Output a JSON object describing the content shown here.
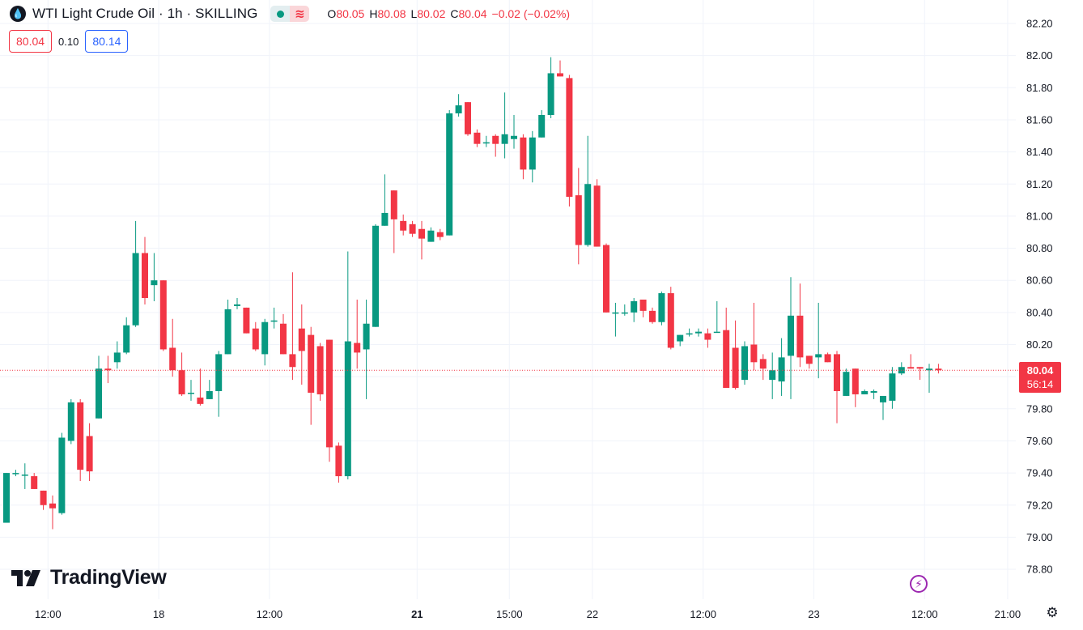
{
  "header": {
    "title": "WTI Light Crude Oil · 1h · SKILLING",
    "ohlc": {
      "o_label": "O",
      "o": "80.05",
      "h_label": "H",
      "h": "80.08",
      "l_label": "L",
      "l": "80.02",
      "c_label": "C",
      "c": "80.04",
      "change": "−0.02 (−0.02%)"
    }
  },
  "quote": {
    "sell": "80.04",
    "spread": "0.10",
    "buy": "80.14"
  },
  "last_price": {
    "price": "80.04",
    "countdown": "56:14"
  },
  "logo": {
    "text": "TradingView"
  },
  "icons": {
    "symbol": "oil-drop-icon",
    "market_status": "dot-icon",
    "wave": "wave-icon",
    "flash": "lightning-icon",
    "settings": "gear-icon"
  },
  "colors": {
    "up": "#089981",
    "down": "#f23645",
    "grid": "#f0f3fa",
    "text": "#131722",
    "buy": "#2962ff"
  },
  "chart_data": {
    "type": "candlestick",
    "symbol": "WTI Light Crude Oil",
    "interval": "1h",
    "ylim": [
      78.7,
      82.3
    ],
    "y_ticks": [
      "82.20",
      "82.00",
      "81.80",
      "81.60",
      "81.40",
      "81.20",
      "81.00",
      "80.80",
      "80.60",
      "80.40",
      "80.20",
      "80.00",
      "79.80",
      "79.60",
      "79.40",
      "79.20",
      "79.00",
      "78.80"
    ],
    "x_ticks": [
      {
        "label": "12:00",
        "index": 4.5,
        "bold": false
      },
      {
        "label": "18",
        "index": 16.5,
        "bold": false
      },
      {
        "label": "12:00",
        "index": 28.5,
        "bold": false
      },
      {
        "label": "21",
        "index": 44.5,
        "bold": true
      },
      {
        "label": "15:00",
        "index": 54.5,
        "bold": false
      },
      {
        "label": "22",
        "index": 63.5,
        "bold": false
      },
      {
        "label": "12:00",
        "index": 75.5,
        "bold": false
      },
      {
        "label": "23",
        "index": 87.5,
        "bold": false
      },
      {
        "label": "12:00",
        "index": 99.5,
        "bold": false
      },
      {
        "label": "21:00",
        "index": 108.5,
        "bold": false
      }
    ],
    "last_price": 80.04,
    "candles": [
      [
        79.09,
        79.4,
        79.06,
        79.09
      ],
      [
        79.4,
        79.4,
        79.42,
        79.38
      ],
      [
        79.39,
        79.39,
        79.46,
        79.3
      ],
      [
        79.38,
        79.3,
        79.4,
        79.3
      ],
      [
        79.29,
        79.2,
        79.29,
        79.17
      ],
      [
        79.21,
        79.18,
        79.26,
        79.05
      ],
      [
        79.15,
        79.62,
        79.65,
        79.14
      ],
      [
        79.6,
        79.84,
        79.86,
        79.58
      ],
      [
        79.84,
        79.42,
        79.86,
        79.35
      ],
      [
        79.63,
        79.41,
        79.71,
        79.35
      ],
      [
        79.74,
        80.05,
        80.13,
        79.74
      ],
      [
        80.05,
        80.04,
        80.13,
        79.96
      ],
      [
        80.09,
        80.15,
        80.22,
        80.05
      ],
      [
        80.15,
        80.32,
        80.37,
        80.14
      ],
      [
        80.32,
        80.77,
        80.97,
        80.31
      ],
      [
        80.77,
        80.49,
        80.87,
        80.45
      ],
      [
        80.57,
        80.6,
        80.77,
        80.47
      ],
      [
        80.6,
        80.17,
        80.6,
        80.16
      ],
      [
        80.18,
        80.04,
        80.36,
        80.0
      ],
      [
        80.04,
        79.89,
        80.15,
        79.88
      ],
      [
        79.9,
        79.9,
        79.98,
        79.85
      ],
      [
        79.87,
        79.83,
        80.05,
        79.82
      ],
      [
        79.86,
        79.91,
        79.98,
        79.86
      ],
      [
        79.91,
        80.14,
        80.16,
        79.75
      ],
      [
        80.14,
        80.42,
        80.48,
        80.14
      ],
      [
        80.44,
        80.45,
        80.49,
        80.42
      ],
      [
        80.43,
        80.27,
        80.43,
        80.27
      ],
      [
        80.3,
        80.17,
        80.34,
        80.16
      ],
      [
        80.14,
        80.34,
        80.36,
        80.07
      ],
      [
        80.35,
        80.35,
        80.43,
        80.3
      ],
      [
        80.33,
        80.14,
        80.39,
        80.14
      ],
      [
        80.14,
        80.06,
        80.65,
        79.98
      ],
      [
        80.3,
        80.16,
        80.45,
        79.95
      ],
      [
        80.26,
        79.9,
        80.31,
        79.7
      ],
      [
        80.19,
        79.89,
        80.21,
        79.85
      ],
      [
        80.23,
        79.56,
        80.23,
        79.47
      ],
      [
        79.57,
        79.38,
        79.59,
        79.34
      ],
      [
        79.38,
        80.22,
        80.78,
        79.36
      ],
      [
        80.21,
        80.15,
        80.48,
        80.05
      ],
      [
        80.17,
        80.33,
        80.48,
        79.86
      ],
      [
        80.31,
        80.94,
        80.95,
        80.31
      ],
      [
        80.94,
        81.02,
        81.26,
        80.98
      ],
      [
        81.16,
        80.98,
        81.16,
        80.77
      ],
      [
        80.97,
        80.91,
        81.01,
        80.88
      ],
      [
        80.95,
        80.89,
        80.97,
        80.87
      ],
      [
        80.92,
        80.86,
        80.97,
        80.73
      ],
      [
        80.84,
        80.91,
        80.93,
        80.84
      ],
      [
        80.9,
        80.87,
        80.92,
        80.85
      ],
      [
        80.88,
        81.64,
        81.66,
        80.88
      ],
      [
        81.64,
        81.69,
        81.76,
        81.62
      ],
      [
        81.71,
        81.51,
        81.71,
        81.5
      ],
      [
        81.52,
        81.45,
        81.54,
        81.43
      ],
      [
        81.46,
        81.46,
        81.5,
        81.43
      ],
      [
        81.5,
        81.45,
        81.51,
        81.37
      ],
      [
        81.45,
        81.51,
        81.77,
        81.36
      ],
      [
        81.48,
        81.5,
        81.63,
        81.42
      ],
      [
        81.49,
        81.29,
        81.51,
        81.23
      ],
      [
        81.29,
        81.49,
        81.53,
        81.21
      ],
      [
        81.49,
        81.63,
        81.66,
        81.49
      ],
      [
        81.63,
        81.89,
        81.99,
        81.61
      ],
      [
        81.89,
        81.87,
        81.97,
        81.89
      ],
      [
        81.86,
        81.12,
        81.88,
        81.06
      ],
      [
        81.13,
        80.82,
        81.3,
        80.7
      ],
      [
        80.82,
        81.2,
        81.5,
        80.81
      ],
      [
        81.19,
        80.81,
        81.23,
        80.82
      ],
      [
        80.82,
        80.4,
        80.83,
        80.4
      ],
      [
        80.4,
        80.4,
        80.46,
        80.25
      ],
      [
        80.4,
        80.4,
        80.45,
        80.38
      ],
      [
        80.4,
        80.47,
        80.49,
        80.34
      ],
      [
        80.48,
        80.41,
        80.47,
        80.37
      ],
      [
        80.41,
        80.34,
        80.43,
        80.33
      ],
      [
        80.34,
        80.52,
        80.53,
        80.32
      ],
      [
        80.52,
        80.18,
        80.56,
        80.17
      ],
      [
        80.22,
        80.26,
        80.24,
        80.19
      ],
      [
        80.27,
        80.27,
        80.3,
        80.25
      ],
      [
        80.27,
        80.28,
        80.3,
        80.25
      ],
      [
        80.27,
        80.23,
        80.3,
        80.18
      ],
      [
        80.28,
        80.28,
        80.47,
        80.28
      ],
      [
        80.29,
        79.93,
        80.43,
        79.93
      ],
      [
        80.18,
        79.93,
        80.35,
        79.92
      ],
      [
        79.98,
        80.19,
        80.22,
        79.95
      ],
      [
        80.2,
        80.09,
        80.46,
        80.04
      ],
      [
        80.11,
        80.05,
        80.14,
        79.98
      ],
      [
        79.98,
        80.04,
        80.15,
        79.86
      ],
      [
        79.97,
        80.12,
        80.24,
        79.88
      ],
      [
        80.13,
        80.38,
        80.62,
        79.86
      ],
      [
        80.38,
        80.12,
        80.58,
        80.06
      ],
      [
        80.13,
        80.08,
        80.12,
        80.05
      ],
      [
        80.12,
        80.14,
        80.46,
        79.99
      ],
      [
        80.14,
        80.09,
        80.15,
        80.09
      ],
      [
        80.14,
        79.91,
        80.16,
        79.71
      ],
      [
        79.88,
        80.03,
        80.05,
        79.88
      ],
      [
        80.05,
        79.89,
        80.05,
        79.81
      ],
      [
        79.89,
        79.91,
        79.92,
        79.89
      ],
      [
        79.9,
        79.91,
        79.92,
        79.86
      ],
      [
        79.84,
        79.88,
        79.88,
        79.73
      ],
      [
        79.85,
        80.02,
        80.06,
        79.8
      ],
      [
        80.02,
        80.06,
        80.09,
        80.01
      ],
      [
        80.06,
        80.05,
        80.14,
        80.06
      ],
      [
        80.06,
        80.05,
        80.06,
        79.98
      ],
      [
        80.04,
        80.05,
        80.08,
        79.9
      ],
      [
        80.05,
        80.04,
        80.08,
        80.02
      ]
    ]
  }
}
